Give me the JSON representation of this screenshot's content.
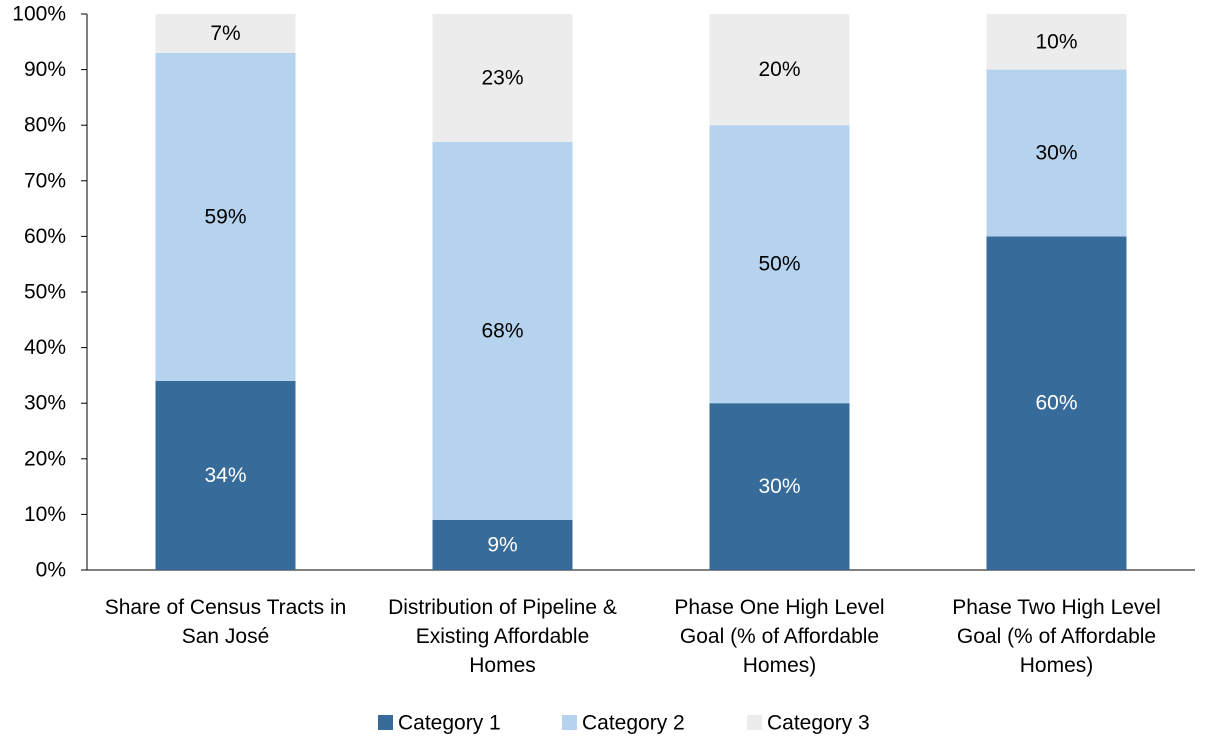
{
  "chart_data": {
    "type": "bar",
    "stacked": true,
    "title": "",
    "xlabel": "",
    "ylabel": "",
    "ylim": [
      0,
      100
    ],
    "y_ticks": [
      "0%",
      "10%",
      "20%",
      "30%",
      "40%",
      "50%",
      "60%",
      "70%",
      "80%",
      "90%",
      "100%"
    ],
    "y_tick_values": [
      0,
      10,
      20,
      30,
      40,
      50,
      60,
      70,
      80,
      90,
      100
    ],
    "grid": false,
    "legend_position": "bottom",
    "categories": [
      [
        "Share of Census Tracts in",
        "San José"
      ],
      [
        "Distribution of Pipeline &",
        "Existing Affordable",
        "Homes"
      ],
      [
        "Phase One High Level",
        "Goal (% of Affordable",
        "Homes)"
      ],
      [
        "Phase Two High Level",
        "Goal (% of Affordable",
        "Homes)"
      ]
    ],
    "series": [
      {
        "name": "Category 1",
        "color": "#376c9a",
        "label_color": "#ffffff",
        "values": [
          34,
          9,
          30,
          60
        ],
        "labels": [
          "34%",
          "9%",
          "30%",
          "60%"
        ]
      },
      {
        "name": "Category 2",
        "color": "#b5d2ee",
        "label_color": "#000000",
        "values": [
          59,
          68,
          50,
          30
        ],
        "labels": [
          "59%",
          "68%",
          "50%",
          "30%"
        ]
      },
      {
        "name": "Category 3",
        "color": "#ececec",
        "label_color": "#000000",
        "values": [
          7,
          23,
          20,
          10
        ],
        "labels": [
          "7%",
          "23%",
          "20%",
          "10%"
        ]
      }
    ]
  }
}
